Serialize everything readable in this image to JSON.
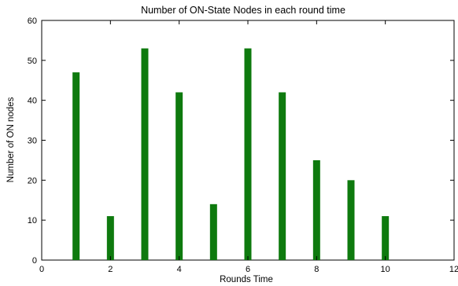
{
  "chart_data": {
    "type": "bar",
    "title": "Number of ON-State Nodes in each round time",
    "xlabel": "Rounds Time",
    "ylabel": "Number of ON nodes",
    "x": [
      1,
      2,
      3,
      4,
      5,
      6,
      7,
      8,
      9,
      10
    ],
    "values": [
      47,
      11,
      53,
      42,
      14,
      53,
      42,
      25,
      20,
      11
    ],
    "xlim": [
      0,
      12
    ],
    "ylim": [
      0,
      60
    ],
    "xticks": [
      "0",
      "2",
      "4",
      "6",
      "8",
      "10",
      "12"
    ],
    "yticks": [
      "0",
      "10",
      "20",
      "30",
      "40",
      "50",
      "60"
    ],
    "bar_color": "#0e7a0e",
    "grid": false
  }
}
